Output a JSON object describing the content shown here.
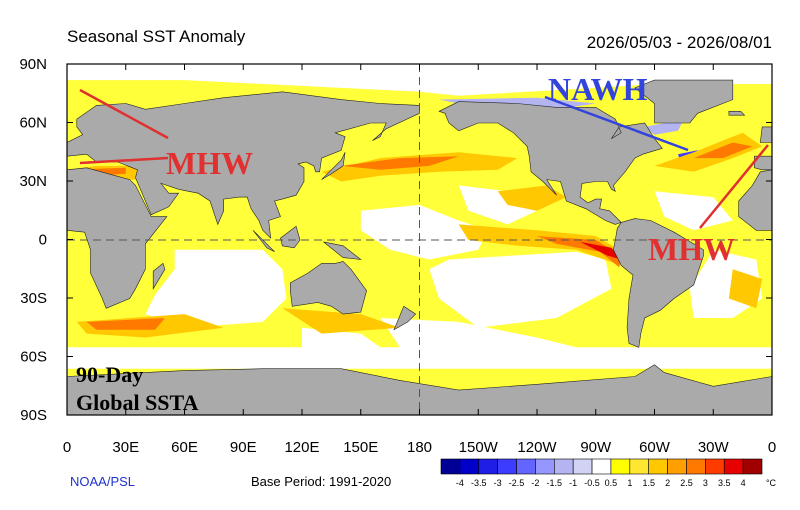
{
  "header": {
    "title": "Seasonal SST Anomaly",
    "date_range": "2026/05/03 - 2026/08/01"
  },
  "axes": {
    "lat_labels": [
      "90N",
      "60N",
      "30N",
      "0",
      "30S",
      "60S",
      "90S"
    ],
    "lon_labels": [
      "0",
      "30E",
      "60E",
      "90E",
      "120E",
      "150E",
      "180",
      "150W",
      "120W",
      "90W",
      "60W",
      "30W",
      "0"
    ]
  },
  "annotations": [
    "NAWH",
    "MHW",
    "MHW",
    "90-Day",
    "Global SSTA"
  ],
  "footer": {
    "source": "NOAA/PSL",
    "base_period": "Base Period: 1991-2020"
  },
  "colorbar": {
    "levels": [
      -4,
      -3.5,
      -3,
      -2.5,
      -2,
      -1.5,
      -1,
      -0.5,
      0.5,
      1,
      1.5,
      2,
      2.5,
      3,
      3.5,
      4
    ],
    "colors": [
      "#000096",
      "#0000c8",
      "#1e1ee6",
      "#3c3cff",
      "#6464ff",
      "#9696ff",
      "#b4b4f0",
      "#d2d2f5",
      "#ffffff",
      "#ffff00",
      "#ffe632",
      "#ffc800",
      "#ffa000",
      "#ff7800",
      "#ff3c00",
      "#e60000",
      "#a00000"
    ],
    "unit": "°C"
  }
}
